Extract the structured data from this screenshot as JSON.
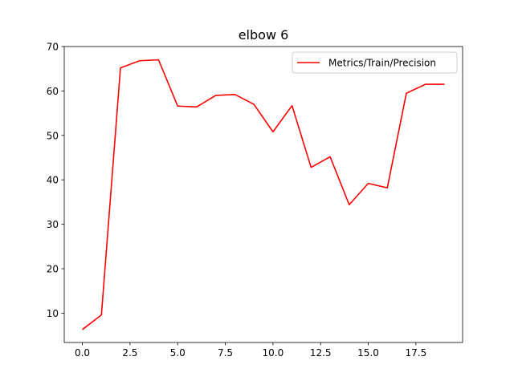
{
  "chart_data": {
    "type": "line",
    "title": "elbow 6",
    "xlabel": "",
    "ylabel": "",
    "xlim": [
      -0.95,
      19.95
    ],
    "ylim": [
      3.4,
      70
    ],
    "x_ticks": [
      0,
      2.5,
      5,
      7.5,
      10,
      12.5,
      15,
      17.5
    ],
    "x_tick_labels": [
      "0.0",
      "2.5",
      "5.0",
      "7.5",
      "10.0",
      "12.5",
      "15.0",
      "17.5"
    ],
    "y_ticks": [
      10,
      20,
      30,
      40,
      50,
      60,
      70
    ],
    "y_tick_labels": [
      "10",
      "20",
      "30",
      "40",
      "50",
      "60",
      "70"
    ],
    "grid": false,
    "legend_position": "top-right",
    "series": [
      {
        "name": "Metrics/Train/Precision",
        "color": "#ff0000",
        "x": [
          0,
          1,
          2,
          3,
          4,
          5,
          6,
          7,
          8,
          9,
          10,
          11,
          12,
          13,
          14,
          15,
          16,
          17,
          18,
          19
        ],
        "values": [
          6.3,
          9.6,
          65.2,
          66.8,
          67.0,
          56.6,
          56.4,
          59.0,
          59.2,
          57.0,
          50.8,
          56.7,
          42.8,
          45.2,
          34.4,
          39.2,
          38.2,
          59.5,
          61.5,
          61.5
        ]
      }
    ]
  }
}
